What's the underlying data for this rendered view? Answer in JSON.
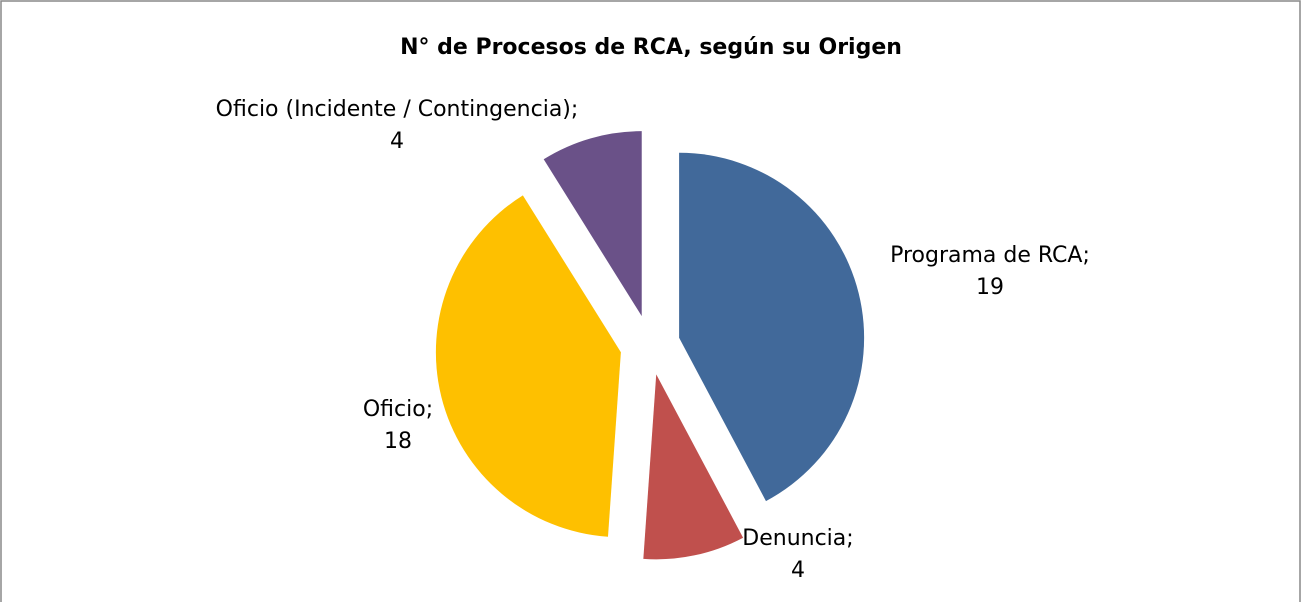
{
  "chart_data": {
    "type": "pie",
    "title": "N° de Procesos de RCA, según su Origen",
    "categories": [
      "Programa de RCA",
      "Denuncia",
      "Oficio",
      "Oficio (Incidente / Contingencia)"
    ],
    "values": [
      19,
      4,
      18,
      4
    ],
    "colors": [
      "#41699a",
      "#c0504d",
      "#fec000",
      "#6a5188"
    ],
    "label_separator": ";"
  }
}
